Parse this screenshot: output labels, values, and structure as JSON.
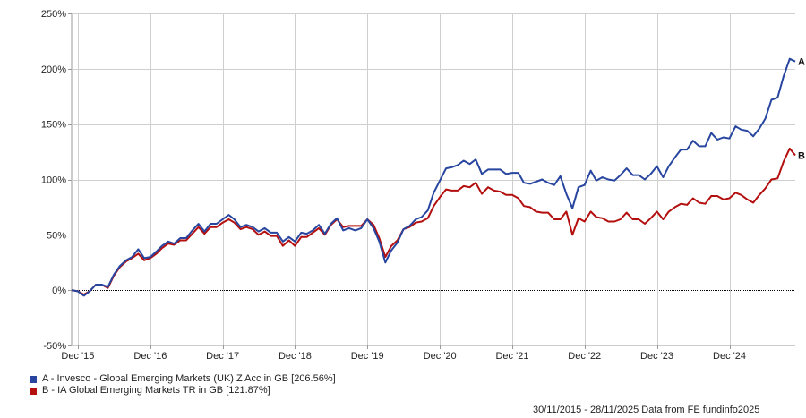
{
  "chart_data": {
    "type": "line",
    "title": "",
    "xlabel": "",
    "ylabel": "",
    "ylim": [
      -50,
      250
    ],
    "y_ticks": [
      -50,
      0,
      50,
      100,
      150,
      200,
      250
    ],
    "y_tick_labels": [
      "-50%",
      "0%",
      "50%",
      "100%",
      "150%",
      "200%",
      "250%"
    ],
    "x_range": [
      "2015-11-30",
      "2025-11-28"
    ],
    "x_ticks": [
      "2015-12-31",
      "2016-12-31",
      "2017-12-31",
      "2018-12-31",
      "2019-12-31",
      "2020-12-31",
      "2021-12-31",
      "2022-12-31",
      "2023-12-31",
      "2024-12-31"
    ],
    "x_tick_labels": [
      "Dec '15",
      "Dec '16",
      "Dec '17",
      "Dec '18",
      "Dec '19",
      "Dec '20",
      "Dec '21",
      "Dec '22",
      "Dec '23",
      "Dec '24"
    ],
    "grid": true,
    "zero_line": true,
    "legend_position": "bottom-left",
    "series": [
      {
        "label": "A",
        "color": "#2846a0",
        "values": [
          [
            "2015-11-30",
            0
          ],
          [
            "2015-12-31",
            -1
          ],
          [
            "2016-01-31",
            -5
          ],
          [
            "2016-02-29",
            -1
          ],
          [
            "2016-03-31",
            5
          ],
          [
            "2016-04-30",
            5
          ],
          [
            "2016-05-31",
            3
          ],
          [
            "2016-06-30",
            14
          ],
          [
            "2016-07-31",
            22
          ],
          [
            "2016-08-31",
            27
          ],
          [
            "2016-09-30",
            30
          ],
          [
            "2016-10-31",
            37
          ],
          [
            "2016-11-30",
            29
          ],
          [
            "2016-12-31",
            30
          ],
          [
            "2017-01-31",
            35
          ],
          [
            "2017-02-28",
            40
          ],
          [
            "2017-03-31",
            44
          ],
          [
            "2017-04-30",
            42
          ],
          [
            "2017-05-31",
            47
          ],
          [
            "2017-06-30",
            47
          ],
          [
            "2017-07-31",
            54
          ],
          [
            "2017-08-31",
            60
          ],
          [
            "2017-09-30",
            53
          ],
          [
            "2017-10-31",
            60
          ],
          [
            "2017-11-30",
            60
          ],
          [
            "2017-12-31",
            64
          ],
          [
            "2018-01-31",
            68
          ],
          [
            "2018-02-28",
            64
          ],
          [
            "2018-03-31",
            57
          ],
          [
            "2018-04-30",
            59
          ],
          [
            "2018-05-31",
            57
          ],
          [
            "2018-06-30",
            53
          ],
          [
            "2018-07-31",
            56
          ],
          [
            "2018-08-31",
            52
          ],
          [
            "2018-09-30",
            52
          ],
          [
            "2018-10-31",
            44
          ],
          [
            "2018-11-30",
            48
          ],
          [
            "2018-12-31",
            44
          ],
          [
            "2019-01-31",
            52
          ],
          [
            "2019-02-28",
            51
          ],
          [
            "2019-03-31",
            54
          ],
          [
            "2019-04-30",
            59
          ],
          [
            "2019-05-31",
            51
          ],
          [
            "2019-06-30",
            60
          ],
          [
            "2019-07-31",
            65
          ],
          [
            "2019-08-31",
            54
          ],
          [
            "2019-09-30",
            56
          ],
          [
            "2019-10-31",
            54
          ],
          [
            "2019-11-30",
            56
          ],
          [
            "2019-12-31",
            64
          ],
          [
            "2020-01-31",
            56
          ],
          [
            "2020-02-29",
            44
          ],
          [
            "2020-03-31",
            25
          ],
          [
            "2020-04-30",
            36
          ],
          [
            "2020-05-31",
            43
          ],
          [
            "2020-06-30",
            55
          ],
          [
            "2020-07-31",
            58
          ],
          [
            "2020-08-31",
            64
          ],
          [
            "2020-09-30",
            66
          ],
          [
            "2020-10-31",
            72
          ],
          [
            "2020-11-30",
            88
          ],
          [
            "2020-12-31",
            99
          ],
          [
            "2021-01-31",
            110
          ],
          [
            "2021-02-28",
            111
          ],
          [
            "2021-03-31",
            113
          ],
          [
            "2021-04-30",
            117
          ],
          [
            "2021-05-31",
            114
          ],
          [
            "2021-06-30",
            118
          ],
          [
            "2021-07-31",
            105
          ],
          [
            "2021-08-31",
            109
          ],
          [
            "2021-09-30",
            109
          ],
          [
            "2021-10-31",
            109
          ],
          [
            "2021-11-30",
            105
          ],
          [
            "2021-12-31",
            106
          ],
          [
            "2022-01-31",
            106
          ],
          [
            "2022-02-28",
            97
          ],
          [
            "2022-03-31",
            96
          ],
          [
            "2022-04-30",
            98
          ],
          [
            "2022-05-31",
            100
          ],
          [
            "2022-06-30",
            97
          ],
          [
            "2022-07-31",
            95
          ],
          [
            "2022-08-31",
            103
          ],
          [
            "2022-09-30",
            87
          ],
          [
            "2022-10-31",
            74
          ],
          [
            "2022-11-30",
            93
          ],
          [
            "2022-12-31",
            95
          ],
          [
            "2023-01-31",
            108
          ],
          [
            "2023-02-28",
            99
          ],
          [
            "2023-03-31",
            102
          ],
          [
            "2023-04-30",
            100
          ],
          [
            "2023-05-31",
            99
          ],
          [
            "2023-06-30",
            104
          ],
          [
            "2023-07-31",
            110
          ],
          [
            "2023-08-31",
            104
          ],
          [
            "2023-09-30",
            104
          ],
          [
            "2023-10-31",
            100
          ],
          [
            "2023-11-30",
            105
          ],
          [
            "2023-12-31",
            112
          ],
          [
            "2024-01-31",
            102
          ],
          [
            "2024-02-29",
            112
          ],
          [
            "2024-03-31",
            120
          ],
          [
            "2024-04-30",
            127
          ],
          [
            "2024-05-31",
            127
          ],
          [
            "2024-06-30",
            135
          ],
          [
            "2024-07-31",
            130
          ],
          [
            "2024-08-31",
            130
          ],
          [
            "2024-09-30",
            142
          ],
          [
            "2024-10-31",
            136
          ],
          [
            "2024-11-30",
            138
          ],
          [
            "2024-12-31",
            137
          ],
          [
            "2025-01-31",
            148
          ],
          [
            "2025-02-28",
            145
          ],
          [
            "2025-03-31",
            144
          ],
          [
            "2025-04-30",
            139
          ],
          [
            "2025-05-31",
            146
          ],
          [
            "2025-06-30",
            155
          ],
          [
            "2025-07-31",
            172
          ],
          [
            "2025-08-31",
            174
          ],
          [
            "2025-09-30",
            193
          ],
          [
            "2025-10-31",
            209
          ],
          [
            "2025-11-28",
            206.56
          ]
        ]
      },
      {
        "label": "B",
        "color": "#b40f0f",
        "values": [
          [
            "2015-11-30",
            0
          ],
          [
            "2015-12-31",
            -1
          ],
          [
            "2016-01-31",
            -4
          ],
          [
            "2016-02-29",
            -1
          ],
          [
            "2016-03-31",
            5
          ],
          [
            "2016-04-30",
            5
          ],
          [
            "2016-05-31",
            2
          ],
          [
            "2016-06-30",
            13
          ],
          [
            "2016-07-31",
            21
          ],
          [
            "2016-08-31",
            26
          ],
          [
            "2016-09-30",
            29
          ],
          [
            "2016-10-31",
            33
          ],
          [
            "2016-11-30",
            27
          ],
          [
            "2016-12-31",
            29
          ],
          [
            "2017-01-31",
            33
          ],
          [
            "2017-02-28",
            38
          ],
          [
            "2017-03-31",
            42
          ],
          [
            "2017-04-30",
            41
          ],
          [
            "2017-05-31",
            45
          ],
          [
            "2017-06-30",
            45
          ],
          [
            "2017-07-31",
            51
          ],
          [
            "2017-08-31",
            57
          ],
          [
            "2017-09-30",
            51
          ],
          [
            "2017-10-31",
            57
          ],
          [
            "2017-11-30",
            57
          ],
          [
            "2017-12-31",
            61
          ],
          [
            "2018-01-31",
            64
          ],
          [
            "2018-02-28",
            61
          ],
          [
            "2018-03-31",
            55
          ],
          [
            "2018-04-30",
            57
          ],
          [
            "2018-05-31",
            55
          ],
          [
            "2018-06-30",
            50
          ],
          [
            "2018-07-31",
            53
          ],
          [
            "2018-08-31",
            49
          ],
          [
            "2018-09-30",
            49
          ],
          [
            "2018-10-31",
            40
          ],
          [
            "2018-11-30",
            45
          ],
          [
            "2018-12-31",
            40
          ],
          [
            "2019-01-31",
            48
          ],
          [
            "2019-02-28",
            48
          ],
          [
            "2019-03-31",
            52
          ],
          [
            "2019-04-30",
            56
          ],
          [
            "2019-05-31",
            50
          ],
          [
            "2019-06-30",
            59
          ],
          [
            "2019-07-31",
            64
          ],
          [
            "2019-08-31",
            57
          ],
          [
            "2019-09-30",
            58
          ],
          [
            "2019-10-31",
            58
          ],
          [
            "2019-11-30",
            58
          ],
          [
            "2019-12-31",
            64
          ],
          [
            "2020-01-31",
            59
          ],
          [
            "2020-02-29",
            47
          ],
          [
            "2020-03-31",
            30
          ],
          [
            "2020-04-30",
            40
          ],
          [
            "2020-05-31",
            45
          ],
          [
            "2020-06-30",
            55
          ],
          [
            "2020-07-31",
            57
          ],
          [
            "2020-08-31",
            61
          ],
          [
            "2020-09-30",
            62
          ],
          [
            "2020-10-31",
            65
          ],
          [
            "2020-11-30",
            76
          ],
          [
            "2020-12-31",
            84
          ],
          [
            "2021-01-31",
            91
          ],
          [
            "2021-02-28",
            90
          ],
          [
            "2021-03-31",
            90
          ],
          [
            "2021-04-30",
            94
          ],
          [
            "2021-05-31",
            93
          ],
          [
            "2021-06-30",
            97
          ],
          [
            "2021-07-31",
            87
          ],
          [
            "2021-08-31",
            93
          ],
          [
            "2021-09-30",
            90
          ],
          [
            "2021-10-31",
            89
          ],
          [
            "2021-11-30",
            86
          ],
          [
            "2021-12-31",
            86
          ],
          [
            "2022-01-31",
            83
          ],
          [
            "2022-02-28",
            76
          ],
          [
            "2022-03-31",
            75
          ],
          [
            "2022-04-30",
            71
          ],
          [
            "2022-05-31",
            70
          ],
          [
            "2022-06-30",
            70
          ],
          [
            "2022-07-31",
            64
          ],
          [
            "2022-08-31",
            64
          ],
          [
            "2022-09-30",
            71
          ],
          [
            "2022-10-31",
            50
          ],
          [
            "2022-11-30",
            65
          ],
          [
            "2022-12-31",
            62
          ],
          [
            "2023-01-31",
            71
          ],
          [
            "2023-02-28",
            66
          ],
          [
            "2023-03-31",
            65
          ],
          [
            "2023-04-30",
            62
          ],
          [
            "2023-05-31",
            62
          ],
          [
            "2023-06-30",
            64
          ],
          [
            "2023-07-31",
            70
          ],
          [
            "2023-08-31",
            64
          ],
          [
            "2023-09-30",
            64
          ],
          [
            "2023-10-31",
            60
          ],
          [
            "2023-11-30",
            65
          ],
          [
            "2023-12-31",
            71
          ],
          [
            "2024-01-31",
            64
          ],
          [
            "2024-02-29",
            71
          ],
          [
            "2024-03-31",
            75
          ],
          [
            "2024-04-30",
            78
          ],
          [
            "2024-05-31",
            77
          ],
          [
            "2024-06-30",
            83
          ],
          [
            "2024-07-31",
            79
          ],
          [
            "2024-08-31",
            78
          ],
          [
            "2024-09-30",
            85
          ],
          [
            "2024-10-31",
            85
          ],
          [
            "2024-11-30",
            82
          ],
          [
            "2024-12-31",
            83
          ],
          [
            "2025-01-31",
            88
          ],
          [
            "2025-02-28",
            86
          ],
          [
            "2025-03-31",
            82
          ],
          [
            "2025-04-30",
            79
          ],
          [
            "2025-05-31",
            86
          ],
          [
            "2025-06-30",
            92
          ],
          [
            "2025-07-31",
            100
          ],
          [
            "2025-08-31",
            101
          ],
          [
            "2025-09-30",
            116
          ],
          [
            "2025-10-31",
            128
          ],
          [
            "2025-11-28",
            121.87
          ]
        ]
      }
    ]
  },
  "legend": [
    {
      "text": "A - Invesco - Global Emerging Markets (UK) Z Acc in GB [206.56%]",
      "color": "#2846a0"
    },
    {
      "text": "B - IA Global Emerging Markets TR in GB [121.87%]",
      "color": "#b40f0f"
    }
  ],
  "footer": "30/11/2015 - 28/11/2025 Data from FE fundinfo2025"
}
